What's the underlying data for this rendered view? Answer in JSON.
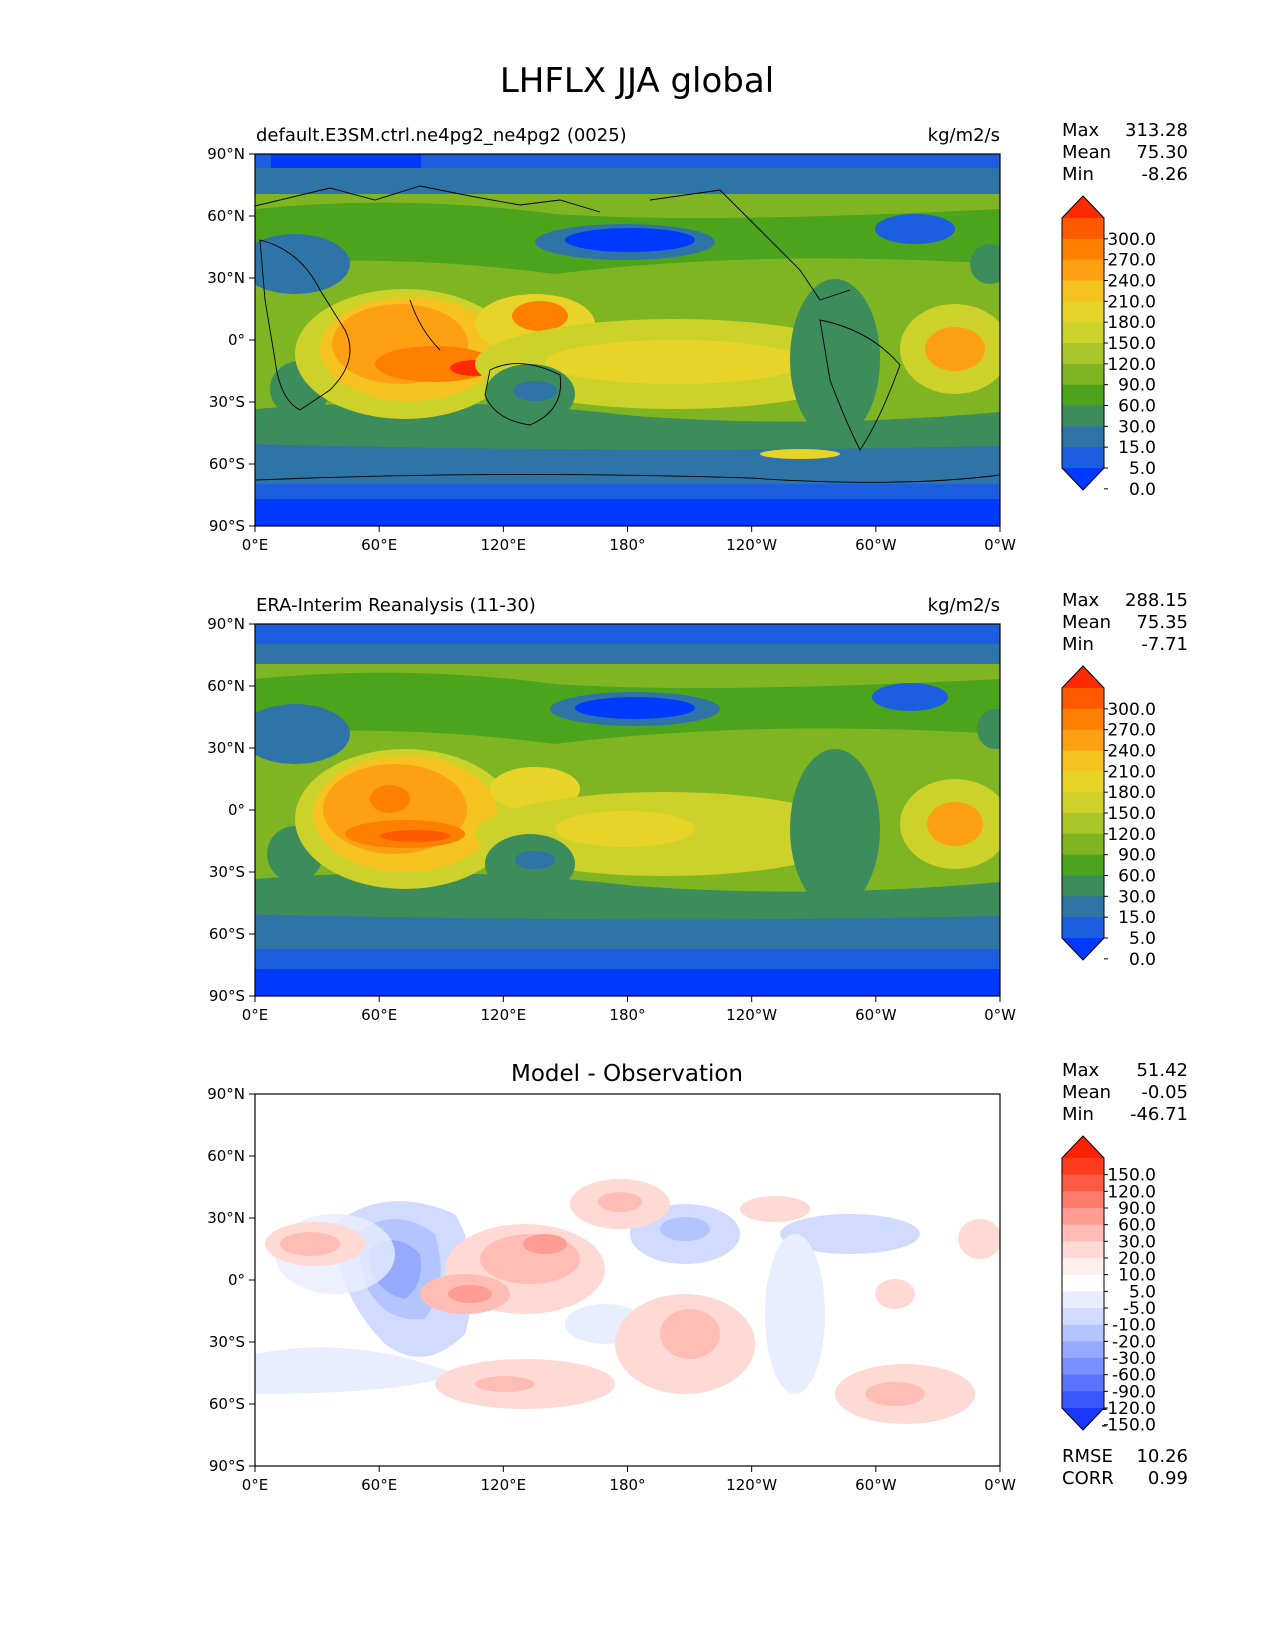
{
  "figure_title": "LHFLX JJA global",
  "axes": {
    "x_ticks": [
      "0°E",
      "60°E",
      "120°E",
      "180°",
      "120°W",
      "60°W",
      "0°W"
    ],
    "y_ticks": [
      "90°N",
      "60°N",
      "30°N",
      "0°",
      "30°S",
      "60°S",
      "90°S"
    ]
  },
  "stat_labels": {
    "max": "Max",
    "mean": "Mean",
    "min": "Min",
    "rmse": "RMSE",
    "corr": "CORR"
  },
  "panels": [
    {
      "title": "default.E3SM.ctrl.ne4pg2_ne4pg2 (0025)",
      "units": "kg/m2/s",
      "stats": {
        "max": "313.28",
        "mean": "75.30",
        "min": "-8.26"
      }
    },
    {
      "title": "ERA-Interim Reanalysis (11-30)",
      "units": "kg/m2/s",
      "stats": {
        "max": "288.15",
        "mean": "75.35",
        "min": "-7.71"
      }
    },
    {
      "title": "Model - Observation",
      "units": "",
      "stats": {
        "max": "51.42",
        "mean": "-0.05",
        "min": "-46.71"
      },
      "rmse": "10.26",
      "corr": "0.99"
    }
  ],
  "colorbars": {
    "field": {
      "labels": [
        "300.0",
        "270.0",
        "240.0",
        "210.0",
        "180.0",
        "150.0",
        "120.0",
        "90.0",
        "60.0",
        "30.0",
        "15.0",
        "5.0",
        "0.0"
      ],
      "colors": [
        "#ff2a00",
        "#ff5a00",
        "#ff8000",
        "#ffa012",
        "#f5c21f",
        "#e8d428",
        "#cdd22b",
        "#a8c629",
        "#7fb522",
        "#4ca31c",
        "#3c8c5c",
        "#2e74a6",
        "#1c5ee0",
        "#0039ff"
      ]
    },
    "diff": {
      "labels": [
        "150.0",
        "120.0",
        "90.0",
        "60.0",
        "30.0",
        "20.0",
        "10.0",
        "5.0",
        "-5.0",
        "-10.0",
        "-20.0",
        "-30.0",
        "-60.0",
        "-90.0",
        "-120.0",
        "-150.0"
      ],
      "colors": [
        "#ff2200",
        "#ff3c1e",
        "#ff5a46",
        "#ff7b6c",
        "#ff9d92",
        "#ffbdb6",
        "#ffd9d4",
        "#ffefec",
        "#ffffff",
        "#e9eeff",
        "#d0dbff",
        "#b3c4ff",
        "#95aaff",
        "#7890ff",
        "#5a74ff",
        "#3a58ff",
        "#1a38ff"
      ]
    }
  },
  "chart_data": [
    {
      "type": "heatmap",
      "title": "default.E3SM.ctrl.ne4pg2_ne4pg2 (0025)",
      "units": "kg/m2/s",
      "xlim": [
        0,
        360
      ],
      "ylim": [
        -90,
        90
      ],
      "levels": [
        0,
        5,
        15,
        30,
        60,
        90,
        120,
        150,
        180,
        210,
        240,
        270,
        300
      ],
      "max": 313.28,
      "mean": 75.3,
      "min": -8.26
    },
    {
      "type": "heatmap",
      "title": "ERA-Interim Reanalysis (11-30)",
      "units": "kg/m2/s",
      "xlim": [
        0,
        360
      ],
      "ylim": [
        -90,
        90
      ],
      "levels": [
        0,
        5,
        15,
        30,
        60,
        90,
        120,
        150,
        180,
        210,
        240,
        270,
        300
      ],
      "max": 288.15,
      "mean": 75.35,
      "min": -7.71
    },
    {
      "type": "heatmap",
      "title": "Model - Observation",
      "xlim": [
        0,
        360
      ],
      "ylim": [
        -90,
        90
      ],
      "levels": [
        -150,
        -120,
        -90,
        -60,
        -30,
        -20,
        -10,
        -5,
        5,
        10,
        20,
        30,
        60,
        90,
        120,
        150
      ],
      "max": 51.42,
      "mean": -0.05,
      "min": -46.71,
      "rmse": 10.26,
      "corr": 0.99
    }
  ]
}
